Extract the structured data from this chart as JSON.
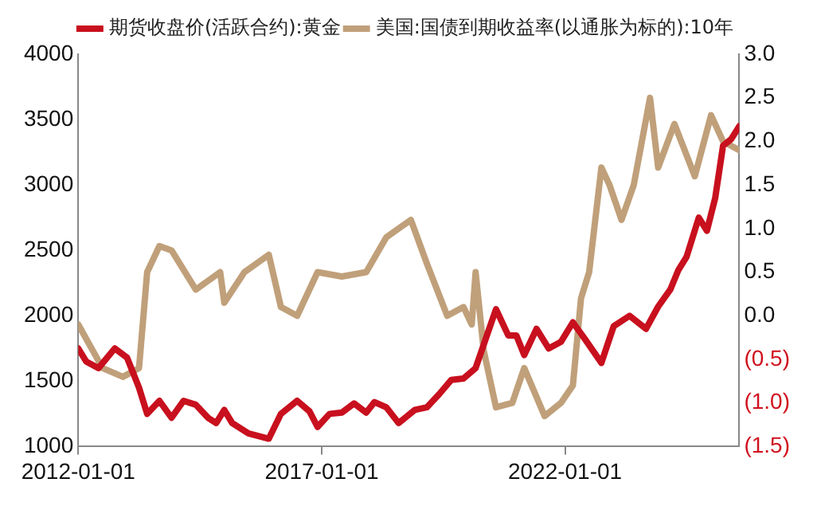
{
  "chart_data": {
    "type": "line",
    "legend": "top",
    "grid": false,
    "marker": "none",
    "line_style": "solid",
    "xlim": [
      "2012-01-01",
      "2025-08-01"
    ],
    "xticks": [
      "2012-01-01",
      "2017-01-01",
      "2022-01-01"
    ],
    "ylim": [
      1000,
      4000
    ],
    "yticks": [
      1000,
      1500,
      2000,
      2500,
      3000,
      3500,
      4000
    ],
    "y2lim": [
      -1.5,
      3.0
    ],
    "y2ticks": [
      {
        "value": -1.5,
        "label": "(1.5)"
      },
      {
        "value": -1.0,
        "label": "(1.0)"
      },
      {
        "value": -0.5,
        "label": "(0.5)"
      },
      {
        "value": 0,
        "label": "0.0"
      },
      {
        "value": 0.5,
        "label": "0.5"
      },
      {
        "value": 1.0,
        "label": "1.0"
      },
      {
        "value": 1.5,
        "label": "1.5"
      },
      {
        "value": 2.0,
        "label": "2.0"
      },
      {
        "value": 2.5,
        "label": "2.5"
      },
      {
        "value": 3.0,
        "label": "3.0"
      }
    ],
    "series": [
      {
        "name": "期货收盘价(活跃合约):黄金",
        "color": "#c8101e",
        "x": [
          "2012-01",
          "2012-03",
          "2012-06",
          "2012-10",
          "2013-01",
          "2013-04",
          "2013-06",
          "2013-09",
          "2013-12",
          "2014-03",
          "2014-06",
          "2014-09",
          "2014-11",
          "2015-01",
          "2015-03",
          "2015-07",
          "2015-12",
          "2016-03",
          "2016-07",
          "2016-10",
          "2016-12",
          "2017-03",
          "2017-06",
          "2017-09",
          "2017-12",
          "2018-02",
          "2018-05",
          "2018-08",
          "2018-12",
          "2019-03",
          "2019-06",
          "2019-09",
          "2019-12",
          "2020-03",
          "2020-08",
          "2020-11",
          "2021-01",
          "2021-03",
          "2021-06",
          "2021-09",
          "2021-12",
          "2022-03",
          "2022-06",
          "2022-10",
          "2023-01",
          "2023-05",
          "2023-09",
          "2023-12",
          "2024-03",
          "2024-05",
          "2024-07",
          "2024-10",
          "2024-12",
          "2025-02",
          "2025-04",
          "2025-06",
          "2025-08"
        ],
        "values": [
          1750,
          1650,
          1600,
          1750,
          1680,
          1450,
          1250,
          1350,
          1220,
          1350,
          1320,
          1220,
          1180,
          1280,
          1180,
          1100,
          1060,
          1250,
          1350,
          1270,
          1150,
          1250,
          1260,
          1330,
          1260,
          1340,
          1300,
          1180,
          1280,
          1300,
          1400,
          1510,
          1520,
          1600,
          2050,
          1850,
          1850,
          1700,
          1900,
          1750,
          1800,
          1950,
          1820,
          1640,
          1920,
          2000,
          1900,
          2070,
          2200,
          2350,
          2450,
          2750,
          2650,
          2900,
          3300,
          3350,
          3450
        ]
      },
      {
        "name": "美国:国债到期收益率(以通胀为标的):10年",
        "color": "#c0a07a",
        "axis": "y2",
        "x": [
          "2012-01",
          "2012-07",
          "2012-12",
          "2013-04",
          "2013-06",
          "2013-09",
          "2013-12",
          "2014-06",
          "2014-12",
          "2015-01",
          "2015-06",
          "2015-12",
          "2016-03",
          "2016-07",
          "2016-12",
          "2017-06",
          "2017-12",
          "2018-05",
          "2018-11",
          "2019-03",
          "2019-08",
          "2019-12",
          "2020-02",
          "2020-03",
          "2020-05",
          "2020-08",
          "2020-12",
          "2021-03",
          "2021-08",
          "2021-12",
          "2022-03",
          "2022-05",
          "2022-07",
          "2022-10",
          "2022-12",
          "2023-03",
          "2023-06",
          "2023-10",
          "2023-12",
          "2024-04",
          "2024-09",
          "2025-01",
          "2025-04",
          "2025-08"
        ],
        "values": [
          -0.1,
          -0.6,
          -0.7,
          -0.6,
          0.5,
          0.8,
          0.75,
          0.3,
          0.5,
          0.15,
          0.5,
          0.7,
          0.1,
          0.0,
          0.5,
          0.45,
          0.5,
          0.9,
          1.1,
          0.6,
          0.0,
          0.1,
          -0.1,
          0.5,
          -0.4,
          -1.05,
          -1.0,
          -0.6,
          -1.15,
          -1.0,
          -0.8,
          0.2,
          0.5,
          1.7,
          1.5,
          1.1,
          1.5,
          2.5,
          1.7,
          2.2,
          1.6,
          2.3,
          2.0,
          1.9
        ]
      }
    ]
  }
}
